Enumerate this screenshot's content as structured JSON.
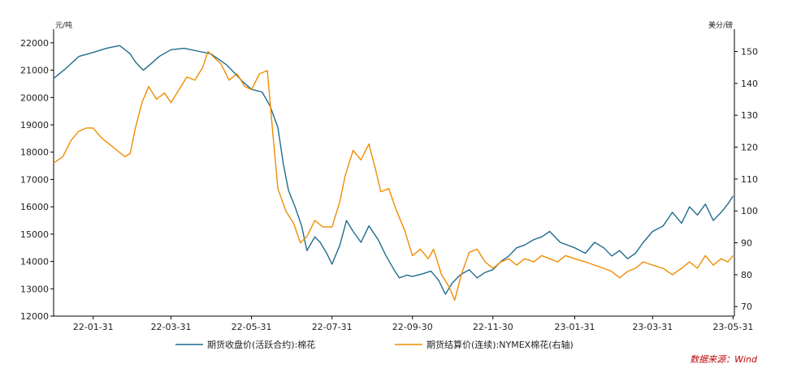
{
  "chart_data": {
    "type": "line",
    "title": "",
    "x_ticks": [
      "22-01-31",
      "22-03-31",
      "22-05-31",
      "22-07-31",
      "22-09-30",
      "22-11-30",
      "23-01-31",
      "23-03-31",
      "23-05-31"
    ],
    "left_axis": {
      "unit": "元/吨",
      "ylim": [
        12000,
        22500
      ],
      "ticks": [
        12000,
        13000,
        14000,
        15000,
        16000,
        17000,
        18000,
        19000,
        20000,
        21000,
        22000
      ]
    },
    "right_axis": {
      "unit": "美分/磅",
      "ylim": [
        67,
        157
      ],
      "ticks": [
        70,
        80,
        90,
        100,
        110,
        120,
        130,
        140,
        150
      ]
    },
    "x_range": {
      "start": "2022-01-01",
      "end": "2023-06-01"
    },
    "series": [
      {
        "name": "期货收盘价(活跃合约):棉花",
        "axis": "left",
        "color": "#1f6b8e",
        "points": [
          [
            "2022-01-01",
            20700
          ],
          [
            "2022-01-10",
            21050
          ],
          [
            "2022-01-20",
            21500
          ],
          [
            "2022-01-31",
            21650
          ],
          [
            "2022-02-10",
            21800
          ],
          [
            "2022-02-20",
            21900
          ],
          [
            "2022-02-28",
            21600
          ],
          [
            "2022-03-04",
            21300
          ],
          [
            "2022-03-10",
            21000
          ],
          [
            "2022-03-15",
            21200
          ],
          [
            "2022-03-22",
            21500
          ],
          [
            "2022-03-31",
            21750
          ],
          [
            "2022-04-10",
            21800
          ],
          [
            "2022-04-20",
            21700
          ],
          [
            "2022-04-30",
            21600
          ],
          [
            "2022-05-06",
            21400
          ],
          [
            "2022-05-12",
            21200
          ],
          [
            "2022-05-18",
            20900
          ],
          [
            "2022-05-24",
            20600
          ],
          [
            "2022-05-31",
            20300
          ],
          [
            "2022-06-08",
            20200
          ],
          [
            "2022-06-14",
            19700
          ],
          [
            "2022-06-20",
            18900
          ],
          [
            "2022-06-24",
            17600
          ],
          [
            "2022-06-28",
            16600
          ],
          [
            "2022-07-03",
            16000
          ],
          [
            "2022-07-08",
            15300
          ],
          [
            "2022-07-12",
            14400
          ],
          [
            "2022-07-18",
            14900
          ],
          [
            "2022-07-22",
            14700
          ],
          [
            "2022-07-27",
            14300
          ],
          [
            "2022-07-31",
            13900
          ],
          [
            "2022-08-06",
            14600
          ],
          [
            "2022-08-11",
            15500
          ],
          [
            "2022-08-16",
            15100
          ],
          [
            "2022-08-22",
            14700
          ],
          [
            "2022-08-28",
            15300
          ],
          [
            "2022-09-04",
            14800
          ],
          [
            "2022-09-10",
            14200
          ],
          [
            "2022-09-16",
            13700
          ],
          [
            "2022-09-20",
            13400
          ],
          [
            "2022-09-26",
            13500
          ],
          [
            "2022-09-30",
            13450
          ],
          [
            "2022-10-08",
            13550
          ],
          [
            "2022-10-14",
            13650
          ],
          [
            "2022-10-20",
            13300
          ],
          [
            "2022-10-25",
            12800
          ],
          [
            "2022-10-30",
            13200
          ],
          [
            "2022-11-05",
            13500
          ],
          [
            "2022-11-12",
            13700
          ],
          [
            "2022-11-18",
            13400
          ],
          [
            "2022-11-24",
            13600
          ],
          [
            "2022-11-30",
            13700
          ],
          [
            "2022-12-06",
            14000
          ],
          [
            "2022-12-12",
            14200
          ],
          [
            "2022-12-18",
            14500
          ],
          [
            "2022-12-24",
            14600
          ],
          [
            "2022-12-31",
            14800
          ],
          [
            "2023-01-06",
            14900
          ],
          [
            "2023-01-12",
            15100
          ],
          [
            "2023-01-20",
            14700
          ],
          [
            "2023-01-31",
            14500
          ],
          [
            "2023-02-08",
            14300
          ],
          [
            "2023-02-15",
            14700
          ],
          [
            "2023-02-22",
            14500
          ],
          [
            "2023-02-28",
            14200
          ],
          [
            "2023-03-06",
            14400
          ],
          [
            "2023-03-12",
            14100
          ],
          [
            "2023-03-18",
            14300
          ],
          [
            "2023-03-24",
            14700
          ],
          [
            "2023-03-31",
            15100
          ],
          [
            "2023-04-08",
            15300
          ],
          [
            "2023-04-15",
            15800
          ],
          [
            "2023-04-22",
            15400
          ],
          [
            "2023-04-28",
            16000
          ],
          [
            "2023-05-04",
            15700
          ],
          [
            "2023-05-10",
            16100
          ],
          [
            "2023-05-16",
            15500
          ],
          [
            "2023-05-22",
            15800
          ],
          [
            "2023-05-27",
            16100
          ],
          [
            "2023-05-31",
            16400
          ]
        ]
      },
      {
        "name": "期货结算价(连续):NYMEX棉花(右轴)",
        "axis": "right",
        "color": "#f08c00",
        "points": [
          [
            "2022-01-01",
            115
          ],
          [
            "2022-01-08",
            117
          ],
          [
            "2022-01-14",
            122
          ],
          [
            "2022-01-20",
            125
          ],
          [
            "2022-01-26",
            126
          ],
          [
            "2022-01-31",
            126
          ],
          [
            "2022-02-06",
            123
          ],
          [
            "2022-02-12",
            121
          ],
          [
            "2022-02-18",
            119
          ],
          [
            "2022-02-24",
            117
          ],
          [
            "2022-02-28",
            118
          ],
          [
            "2022-03-04",
            126
          ],
          [
            "2022-03-09",
            134
          ],
          [
            "2022-03-14",
            139
          ],
          [
            "2022-03-20",
            135
          ],
          [
            "2022-03-26",
            137
          ],
          [
            "2022-03-31",
            134
          ],
          [
            "2022-04-06",
            138
          ],
          [
            "2022-04-12",
            142
          ],
          [
            "2022-04-18",
            141
          ],
          [
            "2022-04-24",
            145
          ],
          [
            "2022-04-28",
            150
          ],
          [
            "2022-05-03",
            148
          ],
          [
            "2022-05-08",
            146
          ],
          [
            "2022-05-14",
            141
          ],
          [
            "2022-05-20",
            143
          ],
          [
            "2022-05-26",
            139
          ],
          [
            "2022-05-31",
            138
          ],
          [
            "2022-06-06",
            143
          ],
          [
            "2022-06-12",
            144
          ],
          [
            "2022-06-16",
            125
          ],
          [
            "2022-06-20",
            107
          ],
          [
            "2022-06-26",
            100
          ],
          [
            "2022-07-02",
            96
          ],
          [
            "2022-07-07",
            90
          ],
          [
            "2022-07-12",
            92
          ],
          [
            "2022-07-18",
            97
          ],
          [
            "2022-07-24",
            95
          ],
          [
            "2022-07-31",
            95
          ],
          [
            "2022-08-06",
            103
          ],
          [
            "2022-08-10",
            111
          ],
          [
            "2022-08-16",
            119
          ],
          [
            "2022-08-22",
            116
          ],
          [
            "2022-08-28",
            121
          ],
          [
            "2022-09-02",
            113
          ],
          [
            "2022-09-06",
            106
          ],
          [
            "2022-09-12",
            107
          ],
          [
            "2022-09-18",
            100
          ],
          [
            "2022-09-24",
            94
          ],
          [
            "2022-09-30",
            86
          ],
          [
            "2022-10-06",
            88
          ],
          [
            "2022-10-12",
            85
          ],
          [
            "2022-10-16",
            88
          ],
          [
            "2022-10-22",
            80
          ],
          [
            "2022-10-28",
            76
          ],
          [
            "2022-11-01",
            72
          ],
          [
            "2022-11-06",
            80
          ],
          [
            "2022-11-12",
            87
          ],
          [
            "2022-11-18",
            88
          ],
          [
            "2022-11-24",
            84
          ],
          [
            "2022-11-30",
            82
          ],
          [
            "2022-12-06",
            84
          ],
          [
            "2022-12-12",
            85
          ],
          [
            "2022-12-18",
            83
          ],
          [
            "2022-12-24",
            85
          ],
          [
            "2022-12-31",
            84
          ],
          [
            "2023-01-06",
            86
          ],
          [
            "2023-01-12",
            85
          ],
          [
            "2023-01-18",
            84
          ],
          [
            "2023-01-24",
            86
          ],
          [
            "2023-01-31",
            85
          ],
          [
            "2023-02-08",
            84
          ],
          [
            "2023-02-15",
            83
          ],
          [
            "2023-02-22",
            82
          ],
          [
            "2023-02-28",
            81
          ],
          [
            "2023-03-06",
            79
          ],
          [
            "2023-03-12",
            81
          ],
          [
            "2023-03-18",
            82
          ],
          [
            "2023-03-24",
            84
          ],
          [
            "2023-03-31",
            83
          ],
          [
            "2023-04-08",
            82
          ],
          [
            "2023-04-15",
            80
          ],
          [
            "2023-04-22",
            82
          ],
          [
            "2023-04-28",
            84
          ],
          [
            "2023-05-04",
            82
          ],
          [
            "2023-05-10",
            86
          ],
          [
            "2023-05-16",
            83
          ],
          [
            "2023-05-22",
            85
          ],
          [
            "2023-05-27",
            84
          ],
          [
            "2023-05-31",
            86
          ]
        ]
      }
    ],
    "source_note": "数据来源：Wind"
  }
}
